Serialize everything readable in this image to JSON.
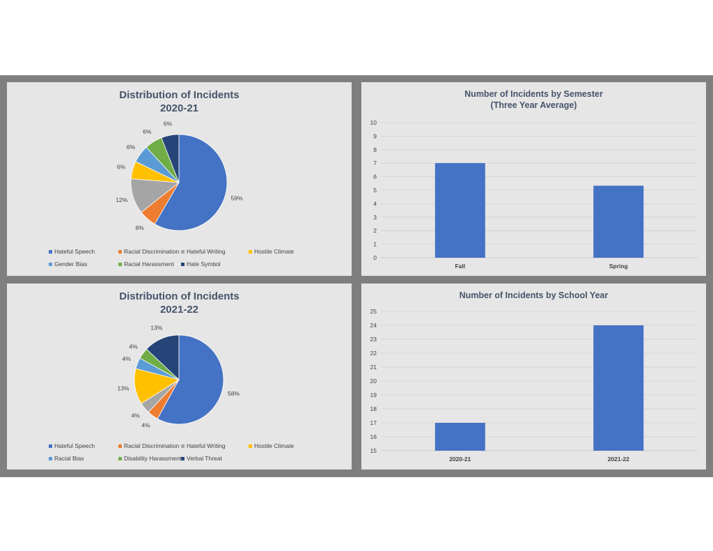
{
  "palette": {
    "hateful_speech": "#4472c4",
    "racial_discrimination": "#ed7d31",
    "hateful_writing": "#a5a5a5",
    "hostile_climate": "#ffc000",
    "light_blue": "#5b9bd5",
    "green": "#70ad47",
    "dark_navy": "#264478",
    "bar": "#4472c4"
  },
  "pie1": {
    "title_line1": "Distribution of Incidents",
    "title_line2": "2020-21"
  },
  "pie2": {
    "title_line1": "Distribution of Incidents",
    "title_line2": "2021-22"
  },
  "bar1": {
    "title_line1": "Number of Incidents by Semester",
    "title_line2": "(Three Year Average)"
  },
  "bar2": {
    "title_line1": "Number of Incidents by School Year",
    "title_line2": ""
  },
  "chart_data": [
    {
      "type": "pie",
      "title": "Distribution of Incidents 2020-21",
      "categories": [
        "Hateful Speech",
        "Racial Discrimination",
        "Hateful Writing",
        "Hostile Climate",
        "Gender Bias",
        "Racial Harassment",
        "Hate Symbol"
      ],
      "values": [
        59,
        6,
        12,
        6,
        6,
        6,
        6
      ],
      "labels": [
        "59%",
        "6%",
        "12%",
        "6%",
        "6%",
        "6%",
        "6%"
      ],
      "colors": [
        "#4472c4",
        "#ed7d31",
        "#a5a5a5",
        "#ffc000",
        "#5b9bd5",
        "#70ad47",
        "#264478"
      ],
      "legend": "bottom"
    },
    {
      "type": "bar",
      "title": "Number of Incidents by Semester (Three Year Average)",
      "categories": [
        "Fall",
        "Spring"
      ],
      "values": [
        7,
        5.33
      ],
      "ylim": [
        0,
        10
      ],
      "yticks": [
        0,
        1,
        2,
        3,
        4,
        5,
        6,
        7,
        8,
        9,
        10
      ],
      "grid": true
    },
    {
      "type": "pie",
      "title": "Distribution of Incidents 2021-22",
      "categories": [
        "Hateful Speech",
        "Racial Discrimination",
        "Hateful Writing",
        "Hostile Climate",
        "Racial Bias",
        "Disability Harassment",
        "Verbal Threat"
      ],
      "values": [
        58,
        4,
        4,
        13,
        4,
        4,
        13
      ],
      "labels": [
        "58%",
        "4%",
        "4%",
        "13%",
        "4%",
        "4%",
        "13%"
      ],
      "colors": [
        "#4472c4",
        "#ed7d31",
        "#a5a5a5",
        "#ffc000",
        "#5b9bd5",
        "#70ad47",
        "#264478"
      ],
      "legend": "bottom"
    },
    {
      "type": "bar",
      "title": "Number of Incidents by School Year",
      "categories": [
        "2020-21",
        "2021-22"
      ],
      "values": [
        17,
        24
      ],
      "ylim": [
        15,
        25
      ],
      "yticks": [
        15,
        16,
        17,
        18,
        19,
        20,
        21,
        22,
        23,
        24,
        25
      ],
      "grid": true
    }
  ]
}
